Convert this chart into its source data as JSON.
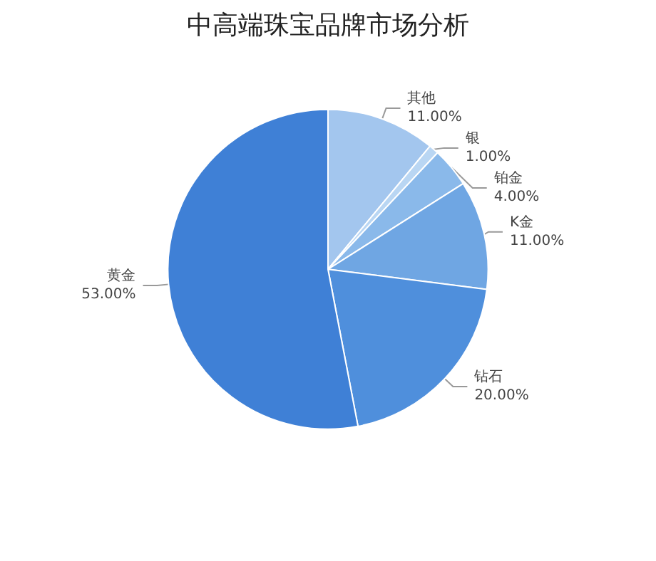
{
  "chart_data": {
    "type": "pie",
    "title": "中高端珠宝品牌市场分析",
    "categories": [
      "其他",
      "银",
      "铂金",
      "K金",
      "钻石",
      "黄金"
    ],
    "values": [
      11,
      1,
      4,
      11,
      20,
      53
    ],
    "value_labels": [
      "11.00%",
      "1.00%",
      "4.00%",
      "11.00%",
      "20.00%",
      "53.00%"
    ],
    "colors": [
      "#a3c6ee",
      "#b9d6f3",
      "#8ab9ea",
      "#6fa6e3",
      "#4f8fdc",
      "#3f80d6"
    ],
    "legend": false
  }
}
